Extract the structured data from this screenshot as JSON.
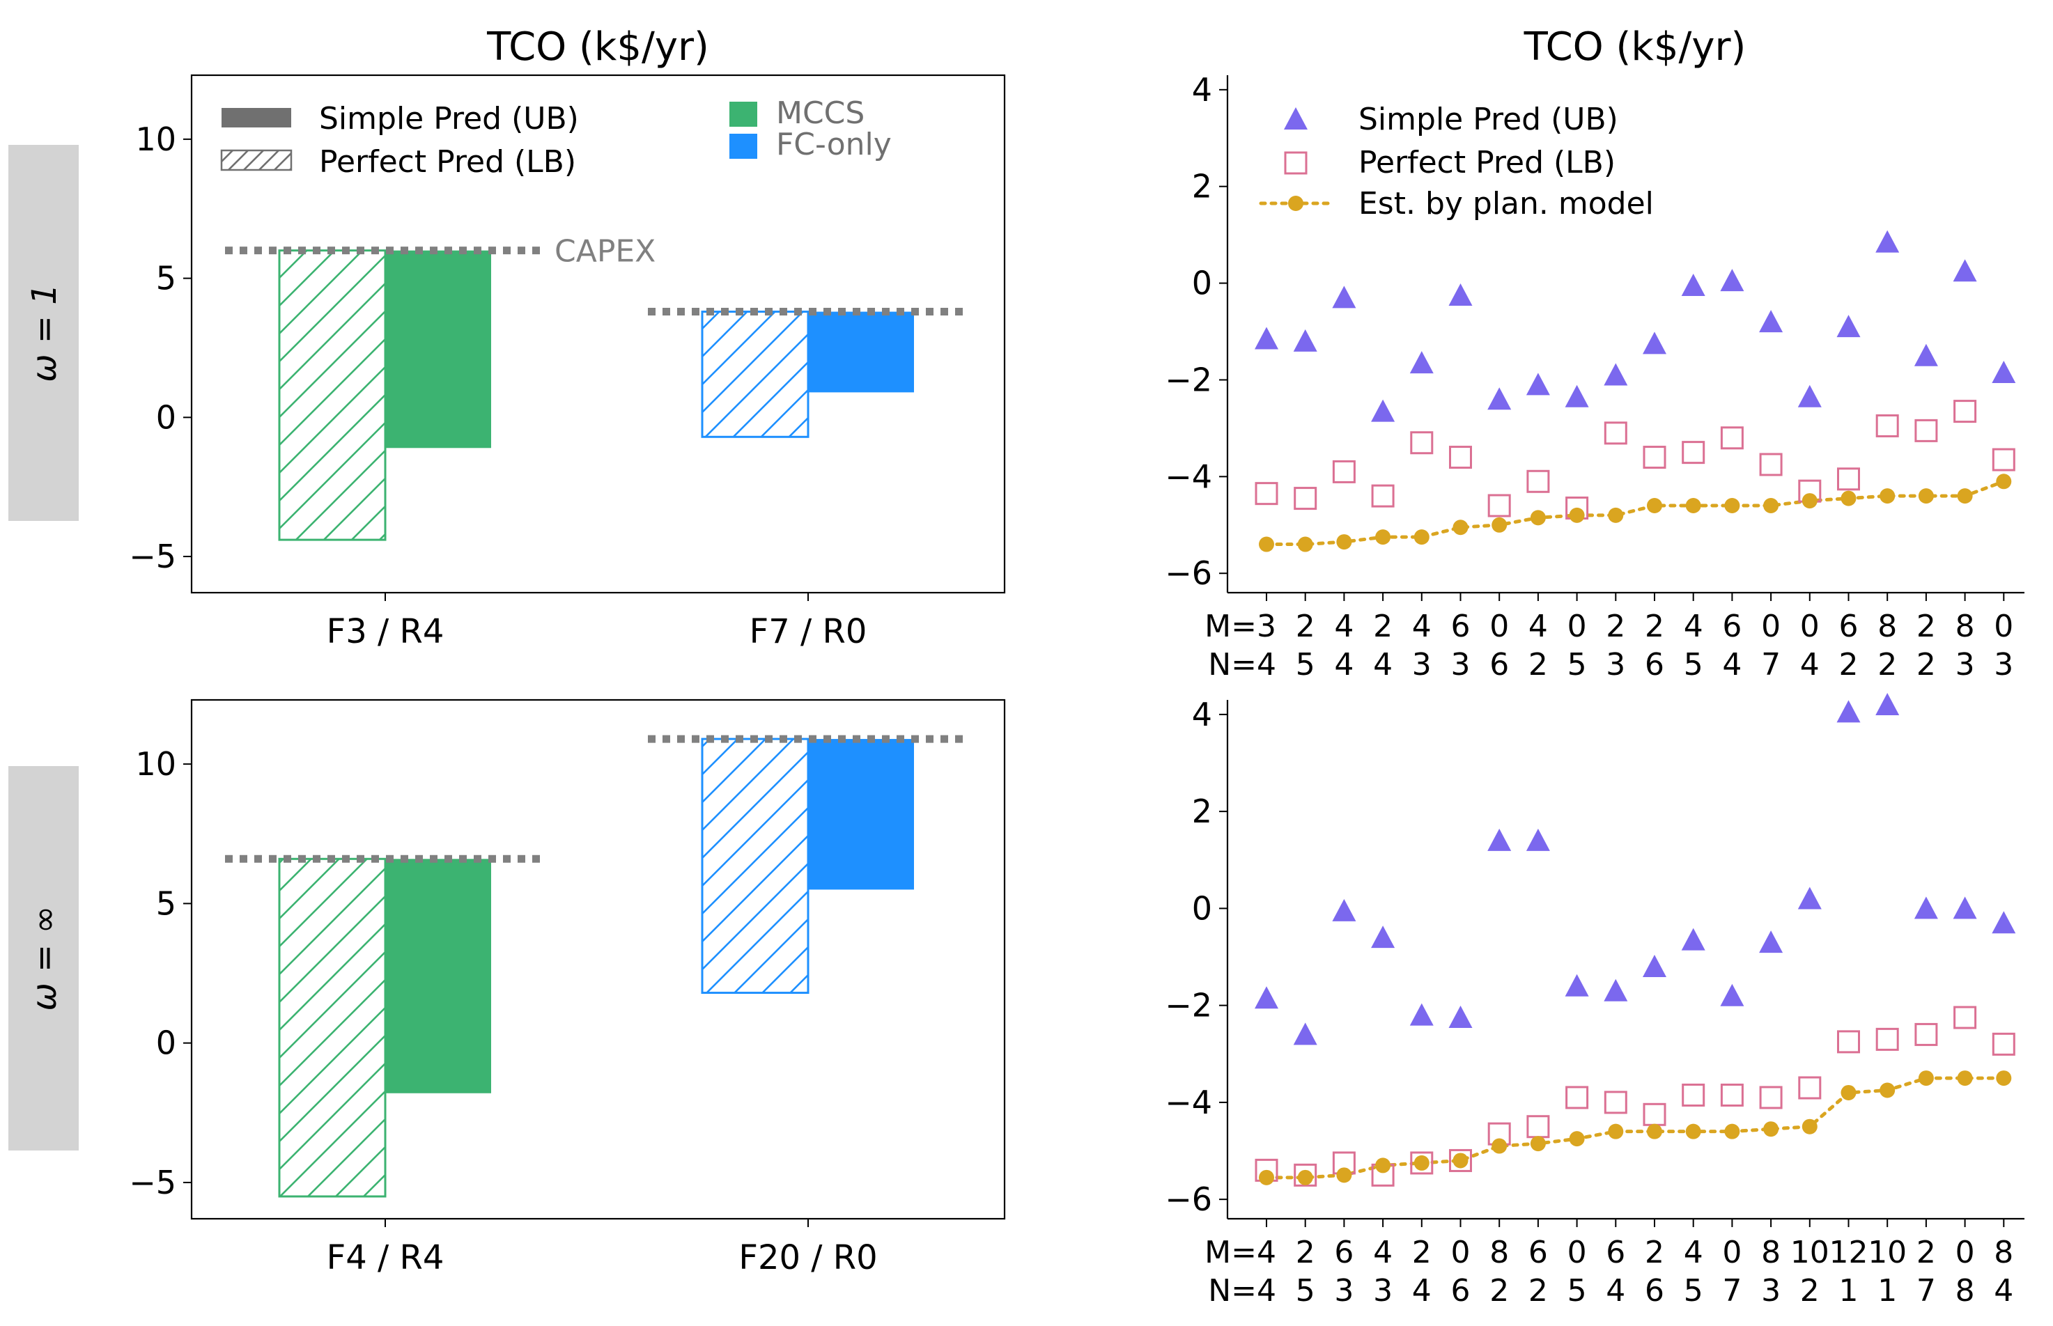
{
  "colors": {
    "mccs": "#3cb371",
    "fc_only": "#1e90ff",
    "capex": "#808080",
    "simple_legend": "#707070",
    "simple_marker": "#7b68ee",
    "perfect_marker": "#db7093",
    "estimate": "#daa520",
    "row_label_bg": "#d3d3d3"
  },
  "row_labels": [
    "ω = 1",
    "ω = ∞"
  ],
  "chart_data": [
    {
      "type": "bar",
      "id": "bar_top",
      "title": "TCO (k$/yr)",
      "categories": [
        "F3 / R4",
        "F7 / R0"
      ],
      "ylim": [
        -6.3,
        12.3
      ],
      "yticks": [
        -5,
        0,
        5,
        10
      ],
      "groups": [
        {
          "system": "MCCS",
          "perfect_lb": -4.4,
          "simple_ub": -1.1,
          "capex": 6.0
        },
        {
          "system": "FC-only",
          "perfect_lb": -0.7,
          "simple_ub": 0.9,
          "capex": 3.8
        }
      ],
      "legend": {
        "simple": "Simple Pred (UB)",
        "perfect": "Perfect Pred (LB)",
        "mccs": "MCCS",
        "fc": "FC-only"
      },
      "capex_label": "CAPEX"
    },
    {
      "type": "bar",
      "id": "bar_bottom",
      "title": "",
      "categories": [
        "F4 / R4",
        "F20 / R0"
      ],
      "ylim": [
        -6.3,
        12.3
      ],
      "yticks": [
        -5,
        0,
        5,
        10
      ],
      "groups": [
        {
          "system": "MCCS",
          "perfect_lb": -5.5,
          "simple_ub": -1.8,
          "capex": 6.6
        },
        {
          "system": "FC-only",
          "perfect_lb": 1.8,
          "simple_ub": 5.5,
          "capex": 10.9
        }
      ]
    },
    {
      "type": "scatter",
      "id": "scatter_top",
      "title": "TCO (k$/yr)",
      "ylim": [
        -6.4,
        4.3
      ],
      "yticks": [
        -6,
        -4,
        -2,
        0,
        2,
        4
      ],
      "m_values": [
        "3",
        "2",
        "4",
        "2",
        "4",
        "6",
        "0",
        "4",
        "0",
        "2",
        "2",
        "4",
        "6",
        "0",
        "0",
        "6",
        "8",
        "2",
        "8",
        "0"
      ],
      "n_values": [
        "4",
        "5",
        "4",
        "4",
        "3",
        "3",
        "6",
        "2",
        "5",
        "3",
        "6",
        "5",
        "4",
        "7",
        "4",
        "2",
        "2",
        "2",
        "3",
        "3"
      ],
      "row_prefix_m": "M=",
      "row_prefix_n": "N=",
      "series": [
        {
          "name": "Simple Pred (UB)",
          "values": [
            -1.15,
            -1.2,
            -0.3,
            -2.65,
            -1.65,
            -0.25,
            -2.4,
            -2.1,
            -2.35,
            -1.9,
            -1.25,
            -0.05,
            0.05,
            -0.8,
            -2.35,
            -0.9,
            0.85,
            -1.5,
            0.25,
            -1.85
          ]
        },
        {
          "name": "Perfect Pred (LB)",
          "values": [
            -4.35,
            -4.45,
            -3.9,
            -4.4,
            -3.3,
            -3.6,
            -4.6,
            -4.1,
            -4.65,
            -3.1,
            -3.6,
            -3.5,
            -3.2,
            -3.75,
            -4.3,
            -4.05,
            -2.95,
            -3.05,
            -2.65,
            -3.65
          ]
        },
        {
          "name": "Est. by plan. model",
          "values": [
            -5.4,
            -5.4,
            -5.35,
            -5.25,
            -5.25,
            -5.05,
            -5.0,
            -4.85,
            -4.8,
            -4.8,
            -4.6,
            -4.6,
            -4.6,
            -4.6,
            -4.5,
            -4.45,
            -4.4,
            -4.4,
            -4.4,
            -4.1
          ]
        }
      ]
    },
    {
      "type": "scatter",
      "id": "scatter_bottom",
      "title": "",
      "ylim": [
        -6.4,
        4.3
      ],
      "yticks": [
        -6,
        -4,
        -2,
        0,
        2,
        4
      ],
      "m_values": [
        "4",
        "2",
        "6",
        "4",
        "2",
        "0",
        "8",
        "6",
        "0",
        "6",
        "2",
        "4",
        "0",
        "8",
        "10",
        "12",
        "10",
        "2",
        "0",
        "8"
      ],
      "n_values": [
        "4",
        "5",
        "3",
        "3",
        "4",
        "6",
        "2",
        "2",
        "5",
        "4",
        "6",
        "5",
        "7",
        "3",
        "2",
        "1",
        "1",
        "7",
        "8",
        "4"
      ],
      "row_prefix_m": "M=",
      "row_prefix_n": "N=",
      "series": [
        {
          "name": "Simple Pred (UB)",
          "values": [
            -1.85,
            -2.6,
            -0.05,
            -0.6,
            -2.2,
            -2.25,
            1.4,
            1.4,
            -1.6,
            -1.7,
            -1.2,
            -0.65,
            -1.8,
            -0.7,
            0.2,
            4.05,
            4.2,
            0.0,
            0.0,
            -0.3
          ]
        },
        {
          "name": "Perfect Pred (LB)",
          "values": [
            -5.4,
            -5.5,
            -5.25,
            -5.5,
            -5.25,
            -5.2,
            -4.65,
            -4.5,
            -3.9,
            -4.0,
            -4.25,
            -3.85,
            -3.85,
            -3.9,
            -3.7,
            -2.75,
            -2.7,
            -2.6,
            -2.25,
            -2.8
          ]
        },
        {
          "name": "Est. by plan. model",
          "values": [
            -5.55,
            -5.55,
            -5.5,
            -5.3,
            -5.25,
            -5.2,
            -4.9,
            -4.85,
            -4.75,
            -4.6,
            -4.6,
            -4.6,
            -4.6,
            -4.55,
            -4.5,
            -3.8,
            -3.75,
            -3.5,
            -3.5,
            -3.5
          ]
        }
      ]
    }
  ]
}
